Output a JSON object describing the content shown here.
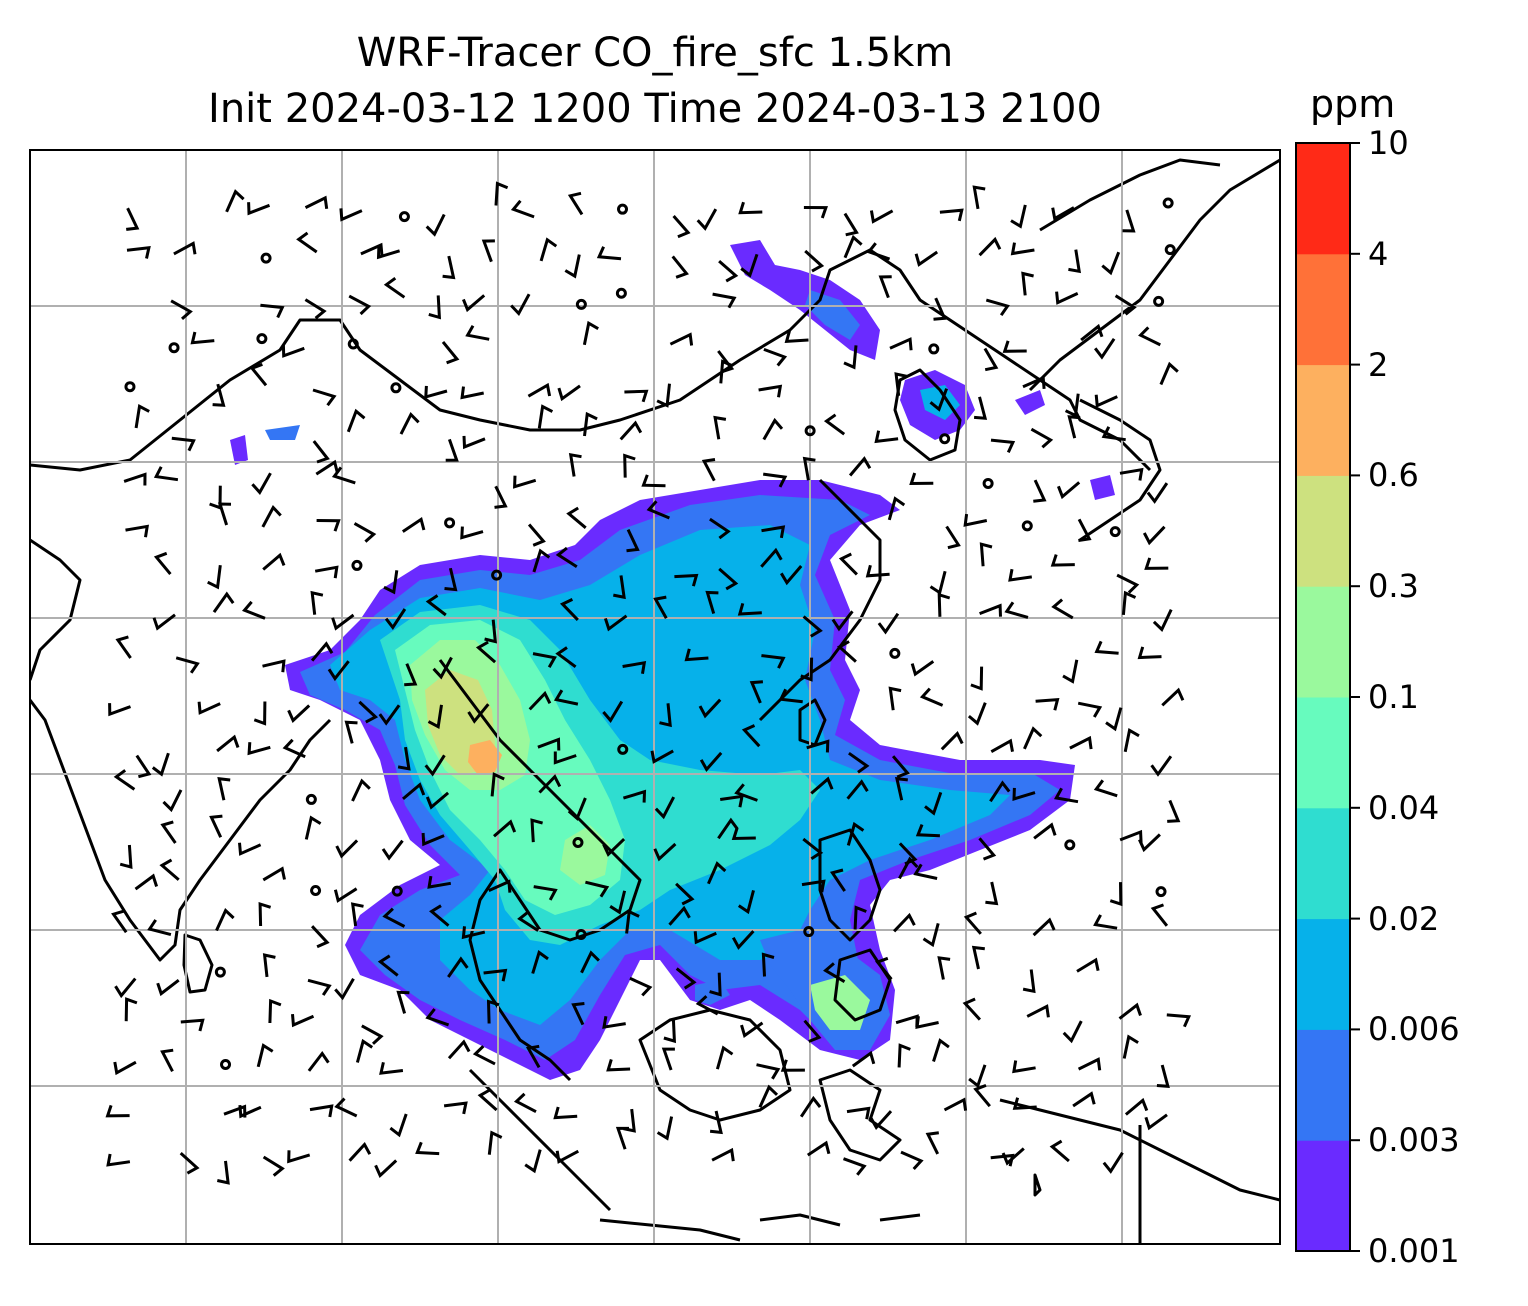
{
  "header": {
    "title_line1": "WRF-Tracer CO_fire_sfc 1.5km",
    "title_line2": "Init 2024-03-12 1200 Time 2024-03-13 2100"
  },
  "colorbar": {
    "unit": "ppm",
    "tick_labels": [
      "0.001",
      "0.003",
      "0.006",
      "0.02",
      "0.04",
      "0.1",
      "0.3",
      "0.6",
      "2",
      "4",
      "10"
    ],
    "colors": [
      "#6a2bff",
      "#3476f4",
      "#06b1ea",
      "#2fddd0",
      "#67fbbe",
      "#9af99d",
      "#cde17f",
      "#fdb05f",
      "#ff7138",
      "#ff2a17"
    ]
  },
  "map": {
    "wind_barbs": "black",
    "coastlines": "black",
    "gridlines": "#b0b0b0"
  }
}
